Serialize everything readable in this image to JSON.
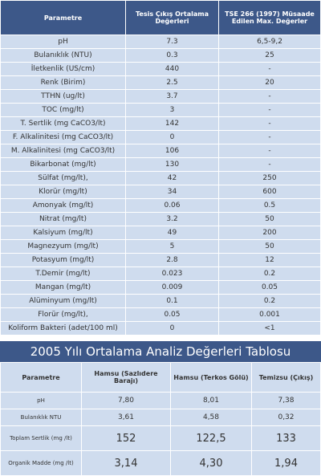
{
  "table1": {
    "header": [
      "Parametre",
      "Tesis Çıkış Ortalama Değerleri",
      "TSE 266 (1997) Müsaade Edilen Max. Değerler"
    ],
    "rows": [
      [
        "pH",
        "7.3",
        "6,5-9,2"
      ],
      [
        "Bulanıklık (NTU)",
        "0.3",
        "25"
      ],
      [
        "İletkenlik (US/cm)",
        "440",
        "-"
      ],
      [
        "Renk (Birim)",
        "2.5",
        "20"
      ],
      [
        "TTHN (ug/lt)",
        "3.7",
        "-"
      ],
      [
        "TOC (mg/lt)",
        "3",
        "-"
      ],
      [
        "T. Sertlik (mg CaCO3/lt)",
        "142",
        "-"
      ],
      [
        "F. Alkalinitesi (mg CaCO3/lt)",
        "0",
        "-"
      ],
      [
        "M. Alkalinitesi (mg CaCO3/lt)",
        "106",
        "-"
      ],
      [
        "Bikarbonat (mg/lt)",
        "130",
        "-"
      ],
      [
        "Sülfat (mg/lt),",
        "42",
        "250"
      ],
      [
        "Klorür (mg/lt)",
        "34",
        "600"
      ],
      [
        "Amonyak (mg/lt)",
        "0.06",
        "0.5"
      ],
      [
        "Nitrat (mg/lt)",
        "3.2",
        "50"
      ],
      [
        "Kalsiyum (mg/lt)",
        "49",
        "200"
      ],
      [
        "Magnezyum (mg/lt)",
        "5",
        "50"
      ],
      [
        "Potasyum (mg/lt)",
        "2.8",
        "12"
      ],
      [
        "T.Demir (mg/lt)",
        "0.023",
        "0.2"
      ],
      [
        "Mangan (mg/lt)",
        "0.009",
        "0.05"
      ],
      [
        "Alüminyum (mg/lt)",
        "0.1",
        "0.2"
      ],
      [
        "Florür (mg/lt),",
        "0.05",
        "0.001"
      ],
      [
        "Koliform Bakteri (adet/100 ml)",
        "0",
        "<1"
      ]
    ]
  },
  "table2": {
    "title": "2005 Yılı Ortalama Analiz Değerleri Tablosu",
    "header": [
      "Parametre",
      "Hamsu (Sazlıdere Barajı)",
      "Hamsu (Terkos Gölü)",
      "Temizsu (Çıkış)"
    ],
    "rows": [
      [
        "pH",
        "7,80",
        "8,01",
        "7,38"
      ],
      [
        "Bulanıklık NTU",
        "3,61",
        "4,58",
        "0,32"
      ],
      [
        "Toplam Sertlik (mg /lt)",
        "152",
        "122,5",
        "133"
      ],
      [
        "Organik Madde (mg /lt)",
        "3,14",
        "4,30",
        "1,94"
      ]
    ]
  }
}
